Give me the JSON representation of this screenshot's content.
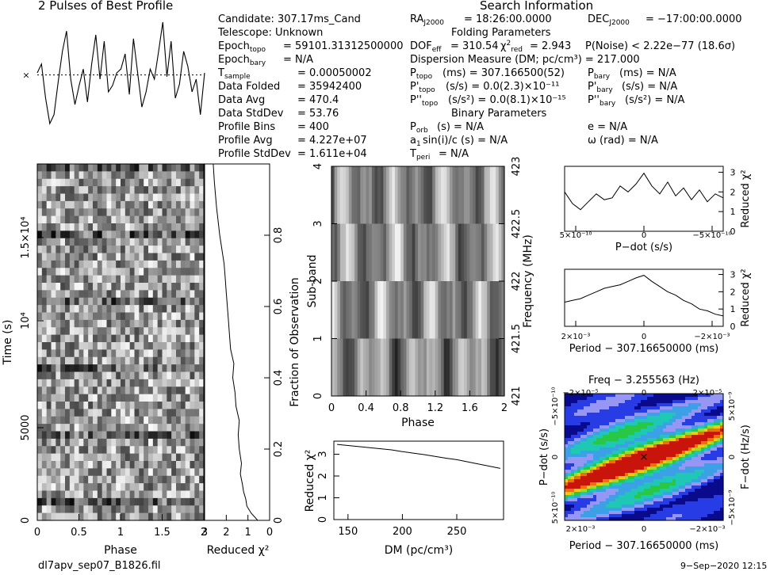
{
  "header": {
    "left_title": "2 Pulses of Best Profile",
    "right_title": "Search Information"
  },
  "candidate_info": {
    "candidate": "Candidate:  307.17ms_Cand",
    "telescope": "Telescope:  Unknown",
    "epoch_topo": "= 59101.31312500000",
    "epoch_bary": "= N/A",
    "t_sample": "=   0.00050002",
    "data_folded": "=   35942400",
    "data_avg": "=   470.4",
    "data_stddev": "=   53.76",
    "profile_bins": "=   400",
    "profile_avg": "=   4.227e+07",
    "profile_stddev": "=   1.611e+04"
  },
  "search_info": {
    "ra": "= 18:26:00.0000",
    "dec": "= −17:00:00.0000",
    "folding_header": "Folding Parameters",
    "dof": "= 310.54",
    "chi2_red": "= 2.943",
    "p_noise": "P(Noise) < 2.22e−77   (18.6σ)",
    "dm_line": "Dispersion Measure (DM; pc/cm³) = 217.000",
    "p_topo": "(ms)  =  307.166500(52)",
    "p_bary": "(ms) = N/A",
    "pd_topo": "(s/s) = 0.0(2.3)×10⁻¹¹",
    "pd_bary": "(s/s) = N/A",
    "pdd_topo": "(s/s²) = 0.0(8.1)×10⁻¹⁵",
    "pdd_bary": "(s/s²) = N/A",
    "binary_header": "Binary Parameters",
    "p_orb": "(s) = N/A",
    "e": "e = N/A",
    "a1sini": "sin(i)/c (s) = N/A",
    "omega": "ω (rad) = N/A",
    "t_peri": "= N/A"
  },
  "footer": {
    "filename": "dl7apv_sep07_B1826.fil",
    "date": "9−Sep−2020 12:15"
  },
  "chart_data": [
    {
      "type": "line",
      "name": "profile",
      "title": "2 Pulses of Best Profile",
      "x": [
        0,
        0.05,
        0.1,
        0.15,
        0.2,
        0.25,
        0.3,
        0.35,
        0.4,
        0.45,
        0.5,
        0.55,
        0.6,
        0.65,
        0.7,
        0.75,
        0.8,
        0.85,
        0.9,
        0.95,
        1.0,
        1.05,
        1.1,
        1.15,
        1.2,
        1.25,
        1.3,
        1.35,
        1.4,
        1.45,
        1.5,
        1.55,
        1.6,
        1.65,
        1.7,
        1.75,
        1.8,
        1.85,
        1.9,
        1.95,
        2.0
      ],
      "y": [
        0.55,
        0.62,
        0.35,
        0.15,
        0.22,
        0.48,
        0.72,
        0.88,
        0.5,
        0.3,
        0.45,
        0.58,
        0.32,
        0.62,
        0.85,
        0.5,
        0.8,
        0.4,
        0.45,
        0.55,
        0.58,
        0.7,
        0.38,
        0.82,
        0.55,
        0.28,
        0.4,
        0.58,
        0.5,
        0.72,
        0.95,
        0.52,
        0.8,
        0.35,
        0.46,
        0.72,
        0.6,
        0.4,
        0.5,
        0.22,
        0.55
      ],
      "reference_line": "dotted-average",
      "xlim": [
        0,
        2
      ]
    },
    {
      "type": "heatmap",
      "name": "time-phase",
      "xlabel": "Phase",
      "ylabel": "Time (s)",
      "xticks": [
        "0",
        "0.5",
        "1",
        "1.5",
        "2"
      ],
      "yticks": [
        "0",
        "5000",
        "10⁴",
        "1.5×10⁴"
      ],
      "colormap": "gray",
      "xlim": [
        0,
        2
      ]
    },
    {
      "type": "line",
      "name": "time-chi2",
      "xlabel": "Reduced χ²",
      "ylabel": "Fraction of Observation",
      "xticks": [
        "3",
        "2",
        "1",
        "0"
      ],
      "yticks": [
        "0",
        "0.2",
        "0.4",
        "0.6",
        "0.8"
      ],
      "x": [
        0.55,
        0.85,
        1.05,
        1.1,
        1.2,
        1.25,
        1.35,
        1.3,
        1.4,
        1.45,
        1.4,
        1.55,
        1.6,
        1.7,
        1.65,
        1.8,
        1.85,
        1.9,
        1.95,
        2.0,
        2.05,
        2.1,
        2.3,
        2.45,
        2.55,
        2.6
      ],
      "y": [
        0.0,
        0.02,
        0.04,
        0.06,
        0.08,
        0.1,
        0.13,
        0.16,
        0.2,
        0.24,
        0.28,
        0.32,
        0.36,
        0.4,
        0.44,
        0.48,
        0.52,
        0.56,
        0.6,
        0.64,
        0.68,
        0.72,
        0.8,
        0.88,
        0.95,
        1.0
      ],
      "xlim": [
        3,
        0
      ],
      "ylim": [
        0,
        1
      ]
    },
    {
      "type": "heatmap",
      "name": "subband-phase",
      "xlabel": "Phase",
      "ylabel": "Sub-band",
      "right_label": "Frequency (MHz)",
      "xticks": [
        "0",
        "0.4",
        "0.8",
        "1.2",
        "1.6",
        "2"
      ],
      "yticks": [
        "0",
        "1",
        "2",
        "3",
        "4"
      ],
      "right_ticks": [
        "421",
        "421.5",
        "422",
        "422.5",
        "423"
      ],
      "colormap": "gray",
      "xlim": [
        0,
        2
      ],
      "ylim": [
        0,
        4
      ]
    },
    {
      "type": "line",
      "name": "dm-chi2",
      "xlabel": "DM (pc/cm³)",
      "ylabel": "Reduced χ²",
      "xticks": [
        "150",
        "200",
        "250"
      ],
      "yticks": [
        "0",
        "1",
        "2",
        "3"
      ],
      "x": [
        140,
        150,
        160,
        170,
        180,
        190,
        200,
        210,
        220,
        230,
        240,
        250,
        260,
        270,
        280,
        290
      ],
      "y": [
        3.45,
        3.4,
        3.35,
        3.3,
        3.25,
        3.2,
        3.12,
        3.05,
        2.98,
        2.9,
        2.82,
        2.75,
        2.65,
        2.55,
        2.45,
        2.35
      ],
      "xlim": [
        137,
        293
      ],
      "ylim": [
        0,
        3.6
      ]
    },
    {
      "type": "line",
      "name": "pdot-chi2",
      "xlabel": "P−dot (s/s)",
      "ylabel": "Reduced χ²",
      "xticks": [
        "5×10⁻¹⁰",
        "0",
        "−5×10⁻¹⁰"
      ],
      "yticks": [
        "0",
        "1",
        "2",
        "3"
      ],
      "x": [
        -1.0,
        -0.9,
        -0.8,
        -0.7,
        -0.6,
        -0.5,
        -0.4,
        -0.3,
        -0.2,
        -0.1,
        0.0,
        0.1,
        0.2,
        0.3,
        0.4,
        0.5,
        0.6,
        0.7,
        0.8,
        0.9,
        1.0
      ],
      "y": [
        2.0,
        1.4,
        1.1,
        1.5,
        1.9,
        1.6,
        1.7,
        2.3,
        2.0,
        2.4,
        2.95,
        2.3,
        1.9,
        2.5,
        1.8,
        2.2,
        1.6,
        2.1,
        1.5,
        1.9,
        1.7
      ],
      "xlim": [
        -1,
        1
      ],
      "ylim": [
        0,
        3.3
      ]
    },
    {
      "type": "line",
      "name": "period-chi2",
      "xlabel": "Period − 307.16650000 (ms)",
      "ylabel": "Reduced χ²",
      "xticks": [
        "2×10⁻³",
        "0",
        "−2×10⁻³"
      ],
      "yticks": [
        "0",
        "1",
        "2",
        "3"
      ],
      "x": [
        -1.0,
        -0.9,
        -0.8,
        -0.7,
        -0.6,
        -0.5,
        -0.4,
        -0.3,
        -0.2,
        -0.1,
        0.0,
        0.1,
        0.2,
        0.3,
        0.4,
        0.5,
        0.6,
        0.7,
        0.8,
        0.9,
        1.0
      ],
      "y": [
        1.4,
        1.5,
        1.6,
        1.8,
        2.0,
        2.2,
        2.3,
        2.4,
        2.6,
        2.8,
        2.95,
        2.6,
        2.3,
        2.0,
        1.8,
        1.5,
        1.3,
        1.0,
        0.9,
        0.7,
        0.6
      ],
      "xlim": [
        -1,
        1
      ],
      "ylim": [
        0,
        3.3
      ]
    },
    {
      "type": "heatmap",
      "name": "period-pdot",
      "title": "Freq − 3.255563 (Hz)",
      "xlabel": "Period − 307.16650000 (ms)",
      "ylabel": "P−dot (s/s)",
      "right_label": "F−dot (Hz/s)",
      "xticks": [
        "2×10⁻³",
        "0",
        "−2×10⁻³"
      ],
      "top_ticks": [
        "−2×10⁻⁵",
        "0",
        "2×10⁻⁵"
      ],
      "yticks": [
        "−5×10⁻¹⁰",
        "0",
        "5×10⁻¹⁰"
      ],
      "right_ticks": [
        "5×10⁻⁹",
        "0",
        "−5×10⁻⁹"
      ],
      "colormap": "rainbow",
      "best_marker": [
        0,
        0
      ]
    }
  ]
}
